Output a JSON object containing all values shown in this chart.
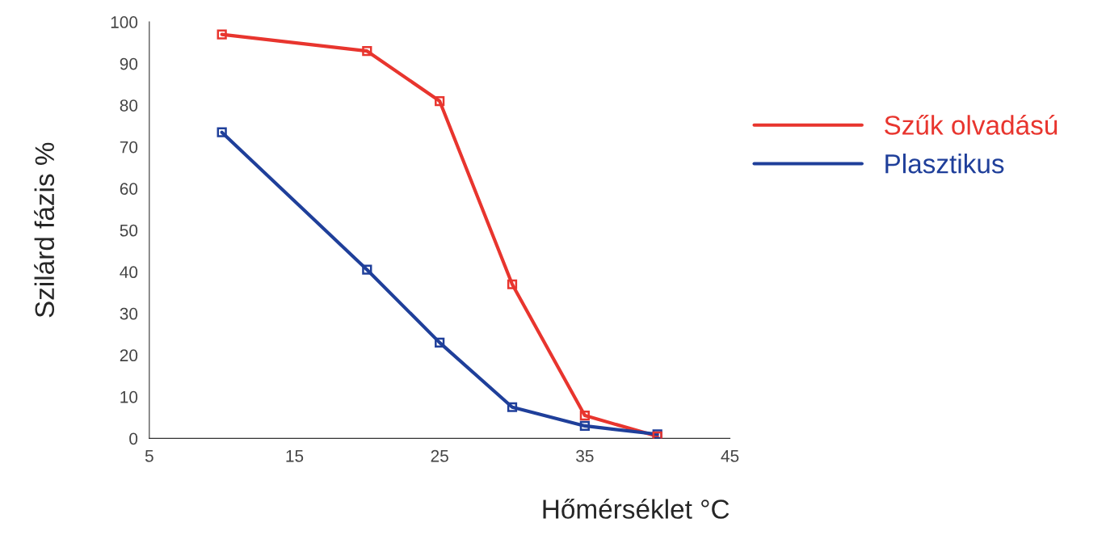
{
  "chart_data": {
    "type": "line",
    "xlabel": "Hőmérséklet °C",
    "ylabel": "Szilárd fázis %",
    "x": [
      10,
      20,
      25,
      30,
      35,
      40
    ],
    "series": [
      {
        "name": "Szűk olvadású",
        "color": "#e8352e",
        "values": [
          97,
          93,
          81,
          37,
          5.5,
          0.5
        ]
      },
      {
        "name": "Plasztikus",
        "color": "#1f3f9a",
        "values": [
          73.5,
          40.5,
          23,
          7.5,
          3,
          1
        ]
      }
    ],
    "xlim": [
      5,
      45
    ],
    "xticks": [
      5,
      15,
      25,
      35,
      45
    ],
    "ylim": [
      0,
      100
    ],
    "yticks": [
      0,
      10,
      20,
      30,
      40,
      50,
      60,
      70,
      80,
      90,
      100
    ],
    "grid": false,
    "legend": "right",
    "marker": "square",
    "line_style": "solid"
  }
}
